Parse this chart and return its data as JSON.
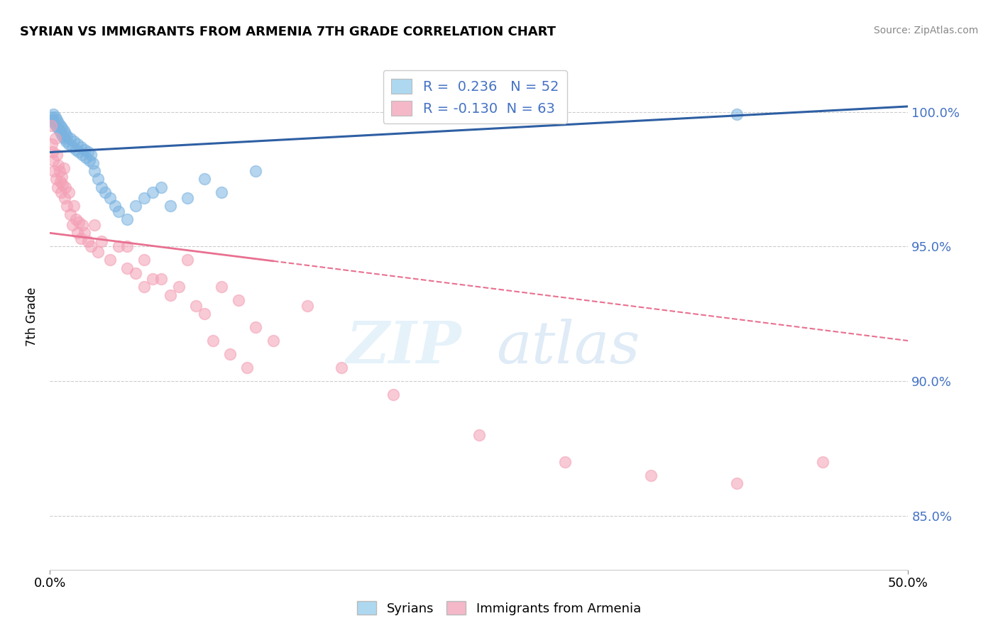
{
  "title": "SYRIAN VS IMMIGRANTS FROM ARMENIA 7TH GRADE CORRELATION CHART",
  "source_text": "Source: ZipAtlas.com",
  "ylabel": "7th Grade",
  "legend_r_blue": "0.236",
  "legend_n_blue": "52",
  "legend_r_pink": "-0.130",
  "legend_n_pink": "63",
  "legend_label_blue": "Syrians",
  "legend_label_pink": "Immigrants from Armenia",
  "blue_color": "#7ab3e0",
  "pink_color": "#f4a0b5",
  "blue_line_color": "#2e5fa3",
  "pink_line_color": "#e87090",
  "blue_scatter_x": [
    0.1,
    0.15,
    0.2,
    0.25,
    0.3,
    0.35,
    0.4,
    0.45,
    0.5,
    0.55,
    0.6,
    0.65,
    0.7,
    0.75,
    0.8,
    0.85,
    0.9,
    0.95,
    1.0,
    1.1,
    1.2,
    1.3,
    1.4,
    1.5,
    1.6,
    1.7,
    1.8,
    1.9,
    2.0,
    2.1,
    2.2,
    2.3,
    2.4,
    2.5,
    2.6,
    2.8,
    3.0,
    3.2,
    3.5,
    3.8,
    4.0,
    4.5,
    5.0,
    5.5,
    6.0,
    6.5,
    7.0,
    8.0,
    9.0,
    10.0,
    12.0,
    40.0
  ],
  "blue_scatter_y": [
    99.8,
    99.7,
    99.9,
    99.6,
    99.8,
    99.5,
    99.7,
    99.4,
    99.6,
    99.3,
    99.5,
    99.2,
    99.4,
    99.1,
    99.3,
    99.0,
    99.2,
    98.9,
    99.1,
    98.8,
    99.0,
    98.7,
    98.9,
    98.6,
    98.8,
    98.5,
    98.7,
    98.4,
    98.6,
    98.3,
    98.5,
    98.2,
    98.4,
    98.1,
    97.8,
    97.5,
    97.2,
    97.0,
    96.8,
    96.5,
    96.3,
    96.0,
    96.5,
    96.8,
    97.0,
    97.2,
    96.5,
    96.8,
    97.5,
    97.0,
    97.8,
    99.9
  ],
  "pink_scatter_x": [
    0.05,
    0.1,
    0.15,
    0.2,
    0.25,
    0.3,
    0.35,
    0.4,
    0.45,
    0.5,
    0.55,
    0.6,
    0.65,
    0.7,
    0.75,
    0.8,
    0.85,
    0.9,
    1.0,
    1.1,
    1.2,
    1.3,
    1.4,
    1.5,
    1.6,
    1.7,
    1.8,
    1.9,
    2.0,
    2.2,
    2.4,
    2.6,
    2.8,
    3.0,
    3.5,
    4.0,
    4.5,
    5.0,
    5.5,
    6.0,
    7.0,
    8.0,
    9.0,
    10.0,
    11.0,
    12.0,
    13.0,
    15.0,
    17.0,
    20.0,
    25.0,
    30.0,
    35.0,
    40.0,
    45.0,
    10.5,
    11.5,
    9.5,
    8.5,
    7.5,
    6.5,
    5.5,
    4.5
  ],
  "pink_scatter_y": [
    99.5,
    98.8,
    98.5,
    98.2,
    97.8,
    99.0,
    97.5,
    98.4,
    97.2,
    98.0,
    97.8,
    97.4,
    97.0,
    97.6,
    97.3,
    97.9,
    96.8,
    97.2,
    96.5,
    97.0,
    96.2,
    95.8,
    96.5,
    96.0,
    95.5,
    95.9,
    95.3,
    95.8,
    95.5,
    95.2,
    95.0,
    95.8,
    94.8,
    95.2,
    94.5,
    95.0,
    94.2,
    94.0,
    93.5,
    93.8,
    93.2,
    94.5,
    92.5,
    93.5,
    93.0,
    92.0,
    91.5,
    92.8,
    90.5,
    89.5,
    88.0,
    87.0,
    86.5,
    86.2,
    87.0,
    91.0,
    90.5,
    91.5,
    92.8,
    93.5,
    93.8,
    94.5,
    95.0
  ],
  "xlim": [
    0,
    50
  ],
  "ylim": [
    83,
    101.8
  ],
  "yticks": [
    85.0,
    90.0,
    95.0,
    100.0
  ],
  "xticks": [
    0,
    50
  ],
  "x_tick_labels": [
    "0.0%",
    "50.0%"
  ],
  "blue_trend_x0": 0,
  "blue_trend_x1": 50,
  "blue_trend_y0": 98.5,
  "blue_trend_y1": 100.2,
  "pink_trend_x0": 0,
  "pink_trend_x1": 50,
  "pink_trend_y0": 95.5,
  "pink_trend_y1": 91.5,
  "pink_solid_end_x": 13,
  "grid_color": "#cccccc",
  "bg_color": "#ffffff"
}
